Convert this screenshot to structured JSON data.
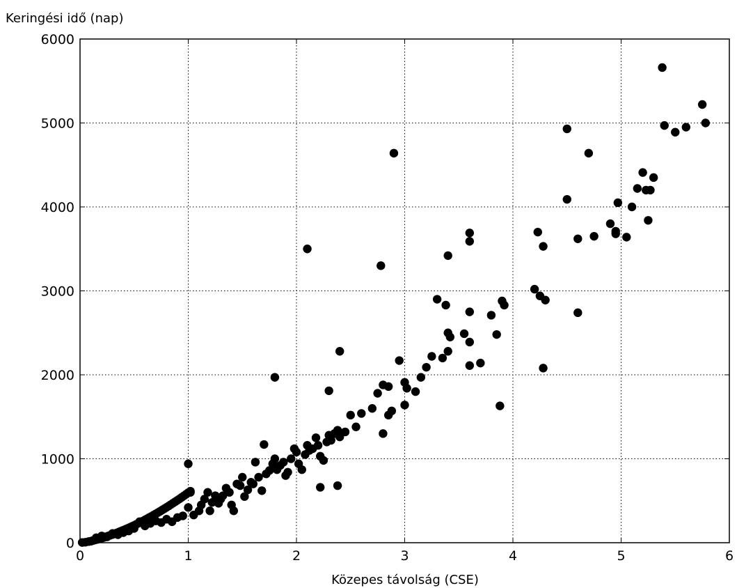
{
  "chart_data": {
    "type": "scatter",
    "xlabel": "Közepes távolság (CSE)",
    "ylabel": "Keringési idő (nap)",
    "xlim": [
      0,
      6
    ],
    "ylim": [
      0,
      6000
    ],
    "xticks": [
      "0",
      "1",
      "2",
      "3",
      "4",
      "5",
      "6"
    ],
    "yticks": [
      "0",
      "1000",
      "2000",
      "3000",
      "4000",
      "5000",
      "6000"
    ],
    "grid": true,
    "marker_color": "#000000",
    "series": [
      {
        "points": [
          [
            0.02,
            3
          ],
          [
            0.05,
            6
          ],
          [
            0.08,
            14
          ],
          [
            0.1,
            18
          ],
          [
            0.12,
            26
          ],
          [
            0.14,
            33
          ],
          [
            0.16,
            40
          ],
          [
            0.18,
            47
          ],
          [
            0.2,
            55
          ],
          [
            0.22,
            62
          ],
          [
            0.24,
            71
          ],
          [
            0.26,
            80
          ],
          [
            0.28,
            89
          ],
          [
            0.3,
            98
          ],
          [
            0.32,
            108
          ],
          [
            0.34,
            117
          ],
          [
            0.36,
            128
          ],
          [
            0.38,
            138
          ],
          [
            0.4,
            149
          ],
          [
            0.42,
            160
          ],
          [
            0.44,
            171
          ],
          [
            0.46,
            182
          ],
          [
            0.48,
            194
          ],
          [
            0.5,
            206
          ],
          [
            0.52,
            219
          ],
          [
            0.54,
            232
          ],
          [
            0.56,
            245
          ],
          [
            0.58,
            258
          ],
          [
            0.6,
            272
          ],
          [
            0.62,
            286
          ],
          [
            0.64,
            300
          ],
          [
            0.66,
            314
          ],
          [
            0.68,
            329
          ],
          [
            0.7,
            344
          ],
          [
            0.72,
            359
          ],
          [
            0.74,
            374
          ],
          [
            0.76,
            390
          ],
          [
            0.78,
            406
          ],
          [
            0.8,
            422
          ],
          [
            0.82,
            438
          ],
          [
            0.84,
            455
          ],
          [
            0.86,
            472
          ],
          [
            0.88,
            489
          ],
          [
            0.9,
            506
          ],
          [
            0.92,
            523
          ],
          [
            0.94,
            541
          ],
          [
            0.96,
            559
          ],
          [
            0.98,
            577
          ],
          [
            1.0,
            596
          ],
          [
            1.02,
            614
          ],
          [
            0.15,
            60
          ],
          [
            0.2,
            80
          ],
          [
            0.25,
            70
          ],
          [
            0.3,
            110
          ],
          [
            0.35,
            95
          ],
          [
            0.4,
            120
          ],
          [
            0.45,
            140
          ],
          [
            0.5,
            170
          ],
          [
            0.55,
            250
          ],
          [
            0.6,
            200
          ],
          [
            0.65,
            230
          ],
          [
            0.7,
            260
          ],
          [
            0.75,
            240
          ],
          [
            0.8,
            280
          ],
          [
            0.85,
            250
          ],
          [
            0.9,
            300
          ],
          [
            0.95,
            320
          ],
          [
            1.0,
            420
          ],
          [
            1.05,
            330
          ],
          [
            1.1,
            380
          ],
          [
            1.12,
            450
          ],
          [
            1.15,
            520
          ],
          [
            1.18,
            600
          ],
          [
            1.2,
            380
          ],
          [
            1.22,
            480
          ],
          [
            1.25,
            560
          ],
          [
            1.28,
            470
          ],
          [
            1.3,
            520
          ],
          [
            1.32,
            560
          ],
          [
            1.35,
            650
          ],
          [
            1.38,
            600
          ],
          [
            1.4,
            450
          ],
          [
            1.42,
            380
          ],
          [
            1.45,
            700
          ],
          [
            1.48,
            680
          ],
          [
            1.5,
            780
          ],
          [
            1.52,
            550
          ],
          [
            1.55,
            630
          ],
          [
            1.58,
            720
          ],
          [
            1.6,
            700
          ],
          [
            1.62,
            960
          ],
          [
            1.65,
            780
          ],
          [
            1.68,
            620
          ],
          [
            1.7,
            1170
          ],
          [
            1.72,
            820
          ],
          [
            1.75,
            860
          ],
          [
            1.78,
            940
          ],
          [
            1.8,
            1000
          ],
          [
            1.82,
            870
          ],
          [
            1.85,
            920
          ],
          [
            1.88,
            960
          ],
          [
            1.9,
            800
          ],
          [
            1.92,
            840
          ],
          [
            1.95,
            1000
          ],
          [
            1.98,
            1120
          ],
          [
            2.0,
            1080
          ],
          [
            2.02,
            940
          ],
          [
            2.05,
            870
          ],
          [
            2.08,
            1050
          ],
          [
            2.1,
            1160
          ],
          [
            2.12,
            1100
          ],
          [
            2.15,
            1120
          ],
          [
            2.18,
            1250
          ],
          [
            2.2,
            1160
          ],
          [
            2.22,
            1030
          ],
          [
            2.25,
            980
          ],
          [
            2.28,
            1200
          ],
          [
            2.3,
            1280
          ],
          [
            2.32,
            1220
          ],
          [
            2.35,
            1300
          ],
          [
            2.38,
            1340
          ],
          [
            2.4,
            1260
          ],
          [
            2.45,
            1320
          ],
          [
            2.5,
            1520
          ],
          [
            2.55,
            1380
          ],
          [
            2.6,
            1540
          ],
          [
            2.7,
            1600
          ],
          [
            2.75,
            1780
          ],
          [
            2.8,
            1880
          ],
          [
            2.85,
            1860
          ],
          [
            1.0,
            940
          ],
          [
            1.02,
            600
          ],
          [
            1.8,
            1970
          ],
          [
            2.1,
            3500
          ],
          [
            2.4,
            2280
          ],
          [
            2.38,
            680
          ],
          [
            2.9,
            4640
          ],
          [
            2.78,
            3300
          ],
          [
            2.8,
            1300
          ],
          [
            2.85,
            1520
          ],
          [
            2.88,
            1570
          ],
          [
            2.95,
            2170
          ],
          [
            3.0,
            1640
          ],
          [
            3.0,
            1910
          ],
          [
            3.02,
            1840
          ],
          [
            3.1,
            1800
          ],
          [
            3.15,
            1970
          ],
          [
            3.2,
            2090
          ],
          [
            3.25,
            2220
          ],
          [
            3.3,
            2900
          ],
          [
            3.35,
            2200
          ],
          [
            3.38,
            2830
          ],
          [
            3.4,
            2500
          ],
          [
            3.4,
            2280
          ],
          [
            3.42,
            2450
          ],
          [
            3.4,
            3420
          ],
          [
            3.6,
            3690
          ],
          [
            3.6,
            3590
          ],
          [
            3.6,
            2750
          ],
          [
            3.6,
            2390
          ],
          [
            3.6,
            2110
          ],
          [
            3.7,
            2140
          ],
          [
            3.55,
            2490
          ],
          [
            3.8,
            2710
          ],
          [
            3.85,
            2480
          ],
          [
            3.9,
            2880
          ],
          [
            3.92,
            2830
          ],
          [
            3.88,
            1630
          ],
          [
            4.2,
            3020
          ],
          [
            4.25,
            2940
          ],
          [
            4.23,
            3700
          ],
          [
            4.28,
            3530
          ],
          [
            4.3,
            2890
          ],
          [
            4.28,
            2080
          ],
          [
            4.5,
            4930
          ],
          [
            4.5,
            4090
          ],
          [
            4.6,
            3620
          ],
          [
            4.6,
            2740
          ],
          [
            4.7,
            4640
          ],
          [
            4.75,
            3650
          ],
          [
            4.9,
            3800
          ],
          [
            4.95,
            3680
          ],
          [
            4.95,
            3710
          ],
          [
            4.97,
            4050
          ],
          [
            5.05,
            3640
          ],
          [
            5.1,
            4000
          ],
          [
            5.15,
            4220
          ],
          [
            5.2,
            4410
          ],
          [
            5.23,
            4200
          ],
          [
            5.27,
            4200
          ],
          [
            5.25,
            3840
          ],
          [
            5.3,
            4350
          ],
          [
            5.38,
            5660
          ],
          [
            5.4,
            4970
          ],
          [
            5.5,
            4890
          ],
          [
            5.6,
            4950
          ],
          [
            5.75,
            5220
          ],
          [
            5.78,
            5000
          ],
          [
            2.22,
            660
          ],
          [
            2.3,
            1810
          ]
        ]
      }
    ]
  }
}
